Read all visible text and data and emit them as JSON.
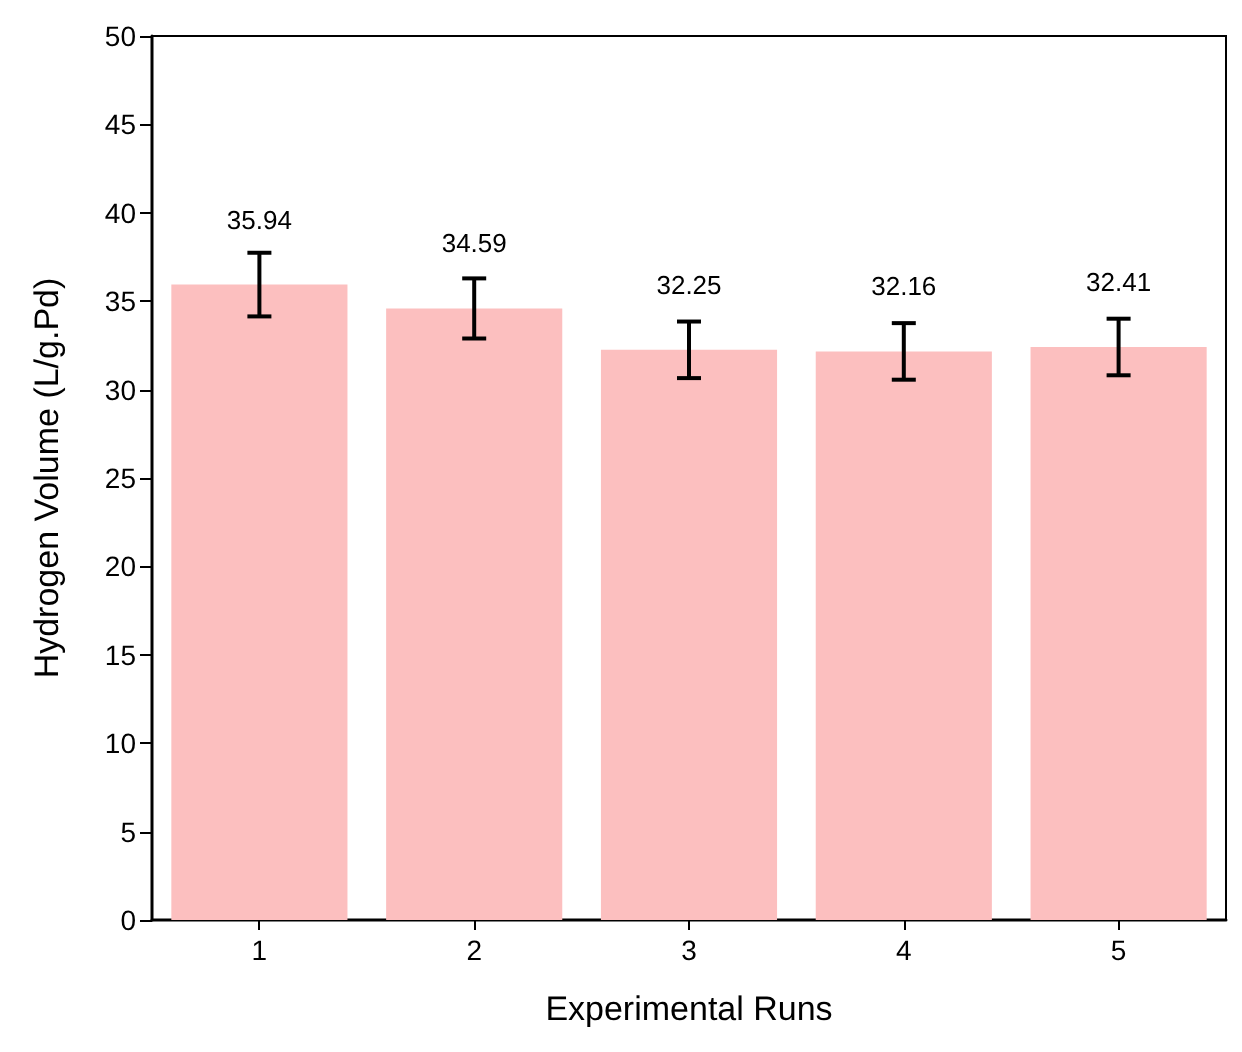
{
  "chart_data": {
    "type": "bar",
    "xlabel": "Experimental Runs",
    "ylabel": "Hydrogen Volume (L/g.Pd)",
    "categories": [
      "1",
      "2",
      "3",
      "4",
      "5"
    ],
    "values": [
      35.94,
      34.59,
      32.25,
      32.16,
      32.41
    ],
    "errors": [
      1.8,
      1.7,
      1.6,
      1.6,
      1.6
    ],
    "color": "#fcbfbf",
    "data_labels": true,
    "grid": false,
    "ylim": [
      0,
      50
    ],
    "yticks": [
      0,
      5,
      10,
      15,
      20,
      25,
      30,
      35,
      40,
      45,
      50
    ]
  }
}
